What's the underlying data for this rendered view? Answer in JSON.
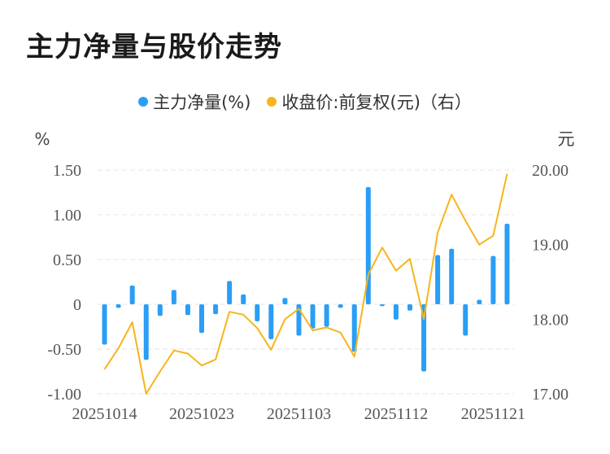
{
  "title": "主力净量与股价走势",
  "legend": {
    "items": [
      {
        "label": "主力净量(%)",
        "color": "#2a9ef5"
      },
      {
        "label": "收盘价:前复权(元)（右）",
        "color": "#f6b51c"
      }
    ]
  },
  "colors": {
    "bar": "#2a9ef5",
    "line": "#f6b51c",
    "grid": "#e6e6e6",
    "tick": "#555555"
  },
  "chart_data": {
    "type": "bar+line",
    "title": "主力净量与股价走势",
    "left_axis": {
      "unit_label": "%",
      "ylim": [
        -1.0,
        1.5
      ],
      "ticks": [
        "1.50",
        "1.00",
        "0.50",
        "0",
        "-0.50",
        "-1.00"
      ]
    },
    "right_axis": {
      "unit_label": "元",
      "ylim": [
        17.0,
        20.0
      ],
      "ticks": [
        "20.00",
        "19.00",
        "18.00",
        "17.00"
      ]
    },
    "x_tick_labels": [
      "20251014",
      "20251023",
      "20251103",
      "20251112",
      "20251121"
    ],
    "x_tick_indices": [
      0,
      7,
      14,
      21,
      28
    ],
    "grid": true,
    "legend_position": "top",
    "series": [
      {
        "name": "主力净量(%)",
        "type": "bar",
        "axis": "left",
        "values": [
          -0.45,
          -0.04,
          0.21,
          -0.62,
          -0.13,
          0.16,
          -0.12,
          -0.32,
          -0.11,
          0.26,
          0.11,
          -0.19,
          -0.39,
          0.07,
          -0.35,
          -0.27,
          -0.25,
          -0.04,
          -0.53,
          1.31,
          -0.02,
          -0.17,
          -0.07,
          -0.75,
          0.55,
          0.62,
          -0.35,
          0.05,
          0.54,
          0.9
        ]
      },
      {
        "name": "收盘价:前复权(元)（右）",
        "type": "line",
        "axis": "right",
        "values": [
          17.33,
          17.61,
          17.96,
          17.0,
          17.3,
          17.58,
          17.54,
          17.38,
          17.46,
          18.1,
          18.06,
          17.88,
          17.59,
          18.0,
          18.14,
          17.85,
          17.89,
          17.82,
          17.5,
          18.6,
          18.96,
          18.65,
          18.81,
          18.0,
          19.16,
          19.67,
          19.32,
          19.0,
          19.12,
          19.95
        ]
      }
    ]
  }
}
